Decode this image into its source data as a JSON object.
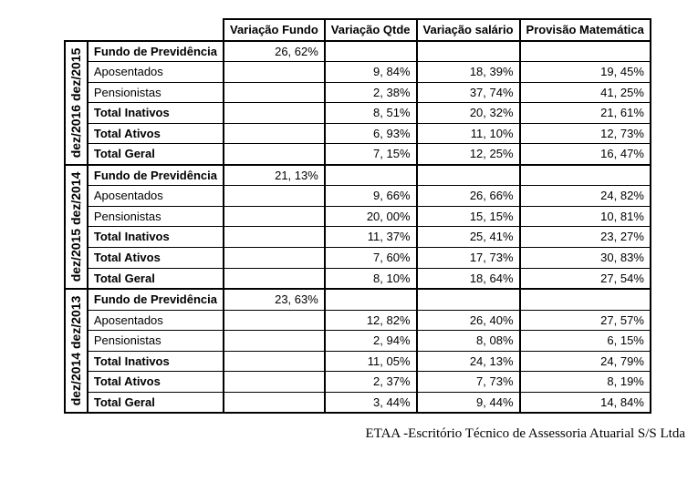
{
  "headers": {
    "empty": "",
    "var_fundo": "Variação Fundo",
    "var_qtde": "Variação Qtde",
    "var_salario": "Variação salário",
    "provisao": "Provisão Matemática"
  },
  "font": {
    "body_family": "Arial",
    "body_size_pt": 10,
    "footer_family": "Times New Roman",
    "footer_size_pt": 11
  },
  "colors": {
    "border": "#000000",
    "text": "#000000",
    "background": "#ffffff",
    "footer_text": "#000000"
  },
  "row_labels": {
    "fundo": "Fundo de Previdência",
    "aposentados": "Aposentados",
    "pensionistas": "Pensionistas",
    "total_inativos": "Total Inativos",
    "total_ativos": "Total Ativos",
    "total_geral": "Total Geral"
  },
  "groups": [
    {
      "period": "dez/2016 dez/2015",
      "rows": [
        {
          "key": "fundo",
          "bold": true,
          "var_fundo": "26, 62%",
          "var_qtde": "",
          "var_salario": "",
          "provisao": ""
        },
        {
          "key": "aposentados",
          "bold": false,
          "var_fundo": "",
          "var_qtde": "9, 84%",
          "var_salario": "18, 39%",
          "provisao": "19, 45%"
        },
        {
          "key": "pensionistas",
          "bold": false,
          "var_fundo": "",
          "var_qtde": "2, 38%",
          "var_salario": "37, 74%",
          "provisao": "41, 25%"
        },
        {
          "key": "total_inativos",
          "bold": true,
          "var_fundo": "",
          "var_qtde": "8, 51%",
          "var_salario": "20, 32%",
          "provisao": "21, 61%"
        },
        {
          "key": "total_ativos",
          "bold": true,
          "var_fundo": "",
          "var_qtde": "6, 93%",
          "var_salario": "11, 10%",
          "provisao": "12, 73%"
        },
        {
          "key": "total_geral",
          "bold": true,
          "var_fundo": "",
          "var_qtde": "7, 15%",
          "var_salario": "12, 25%",
          "provisao": "16, 47%"
        }
      ]
    },
    {
      "period": "dez/2015 dez/2014",
      "rows": [
        {
          "key": "fundo",
          "bold": true,
          "var_fundo": "21, 13%",
          "var_qtde": "",
          "var_salario": "",
          "provisao": ""
        },
        {
          "key": "aposentados",
          "bold": false,
          "var_fundo": "",
          "var_qtde": "9, 66%",
          "var_salario": "26, 66%",
          "provisao": "24, 82%"
        },
        {
          "key": "pensionistas",
          "bold": false,
          "var_fundo": "",
          "var_qtde": "20, 00%",
          "var_salario": "15, 15%",
          "provisao": "10, 81%"
        },
        {
          "key": "total_inativos",
          "bold": true,
          "var_fundo": "",
          "var_qtde": "11, 37%",
          "var_salario": "25, 41%",
          "provisao": "23, 27%"
        },
        {
          "key": "total_ativos",
          "bold": true,
          "var_fundo": "",
          "var_qtde": "7, 60%",
          "var_salario": "17, 73%",
          "provisao": "30, 83%"
        },
        {
          "key": "total_geral",
          "bold": true,
          "var_fundo": "",
          "var_qtde": "8, 10%",
          "var_salario": "18, 64%",
          "provisao": "27, 54%"
        }
      ]
    },
    {
      "period": "dez/2014 dez/2013",
      "rows": [
        {
          "key": "fundo",
          "bold": true,
          "var_fundo": "23, 63%",
          "var_qtde": "",
          "var_salario": "",
          "provisao": ""
        },
        {
          "key": "aposentados",
          "bold": false,
          "var_fundo": "",
          "var_qtde": "12, 82%",
          "var_salario": "26, 40%",
          "provisao": "27, 57%"
        },
        {
          "key": "pensionistas",
          "bold": false,
          "var_fundo": "",
          "var_qtde": "2, 94%",
          "var_salario": "8, 08%",
          "provisao": "6, 15%"
        },
        {
          "key": "total_inativos",
          "bold": true,
          "var_fundo": "",
          "var_qtde": "11, 05%",
          "var_salario": "24, 13%",
          "provisao": "24, 79%"
        },
        {
          "key": "total_ativos",
          "bold": true,
          "var_fundo": "",
          "var_qtde": "2, 37%",
          "var_salario": "7, 73%",
          "provisao": "8, 19%"
        },
        {
          "key": "total_geral",
          "bold": true,
          "var_fundo": "",
          "var_qtde": "3, 44%",
          "var_salario": "9, 44%",
          "provisao": "14, 84%"
        }
      ]
    }
  ],
  "footer": "ETAA -Escritório Técnico de Assessoria Atuarial S/S Ltda"
}
